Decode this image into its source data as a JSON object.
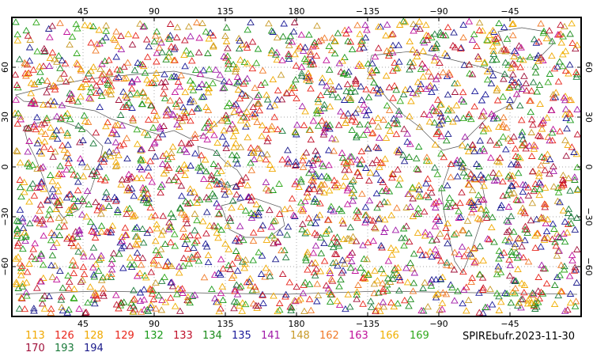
{
  "map": {
    "lon_ticks_top": [
      "45",
      "90",
      "135",
      "180",
      "−135",
      "−90",
      "−45"
    ],
    "lon_ticks_bottom": [
      "45",
      "90",
      "135",
      "180",
      "−135",
      "−90",
      "−45"
    ],
    "lat_ticks_left": [
      "60",
      "30",
      "0",
      "−30",
      "−60"
    ],
    "lat_ticks_right": [
      "60",
      "30",
      "0",
      "−30",
      "−60"
    ],
    "marker_shape": "open-triangle",
    "grid": "dotted",
    "land_color": "#ffffff",
    "coastline_color": "#555555"
  },
  "legend": {
    "items": [
      {
        "label": "113",
        "color": "#f0a800"
      },
      {
        "label": "126",
        "color": "#e8261c"
      },
      {
        "label": "128",
        "color": "#f0a800"
      },
      {
        "label": "129",
        "color": "#e8261c"
      },
      {
        "label": "132",
        "color": "#1a9a1a"
      },
      {
        "label": "133",
        "color": "#c0102a"
      },
      {
        "label": "134",
        "color": "#1a8a1a"
      },
      {
        "label": "135",
        "color": "#1a1a9a"
      },
      {
        "label": "141",
        "color": "#a01aa8"
      },
      {
        "label": "148",
        "color": "#c89a28"
      },
      {
        "label": "162",
        "color": "#f07a28"
      },
      {
        "label": "163",
        "color": "#c0109a"
      },
      {
        "label": "166",
        "color": "#f0b000"
      },
      {
        "label": "169",
        "color": "#30a81a"
      },
      {
        "label": "170",
        "color": "#a0103a"
      },
      {
        "label": "193",
        "color": "#1a7a3a"
      },
      {
        "label": "194",
        "color": "#1a1a8a"
      }
    ]
  },
  "source_label": "SPIREbufr.2023-11-30"
}
